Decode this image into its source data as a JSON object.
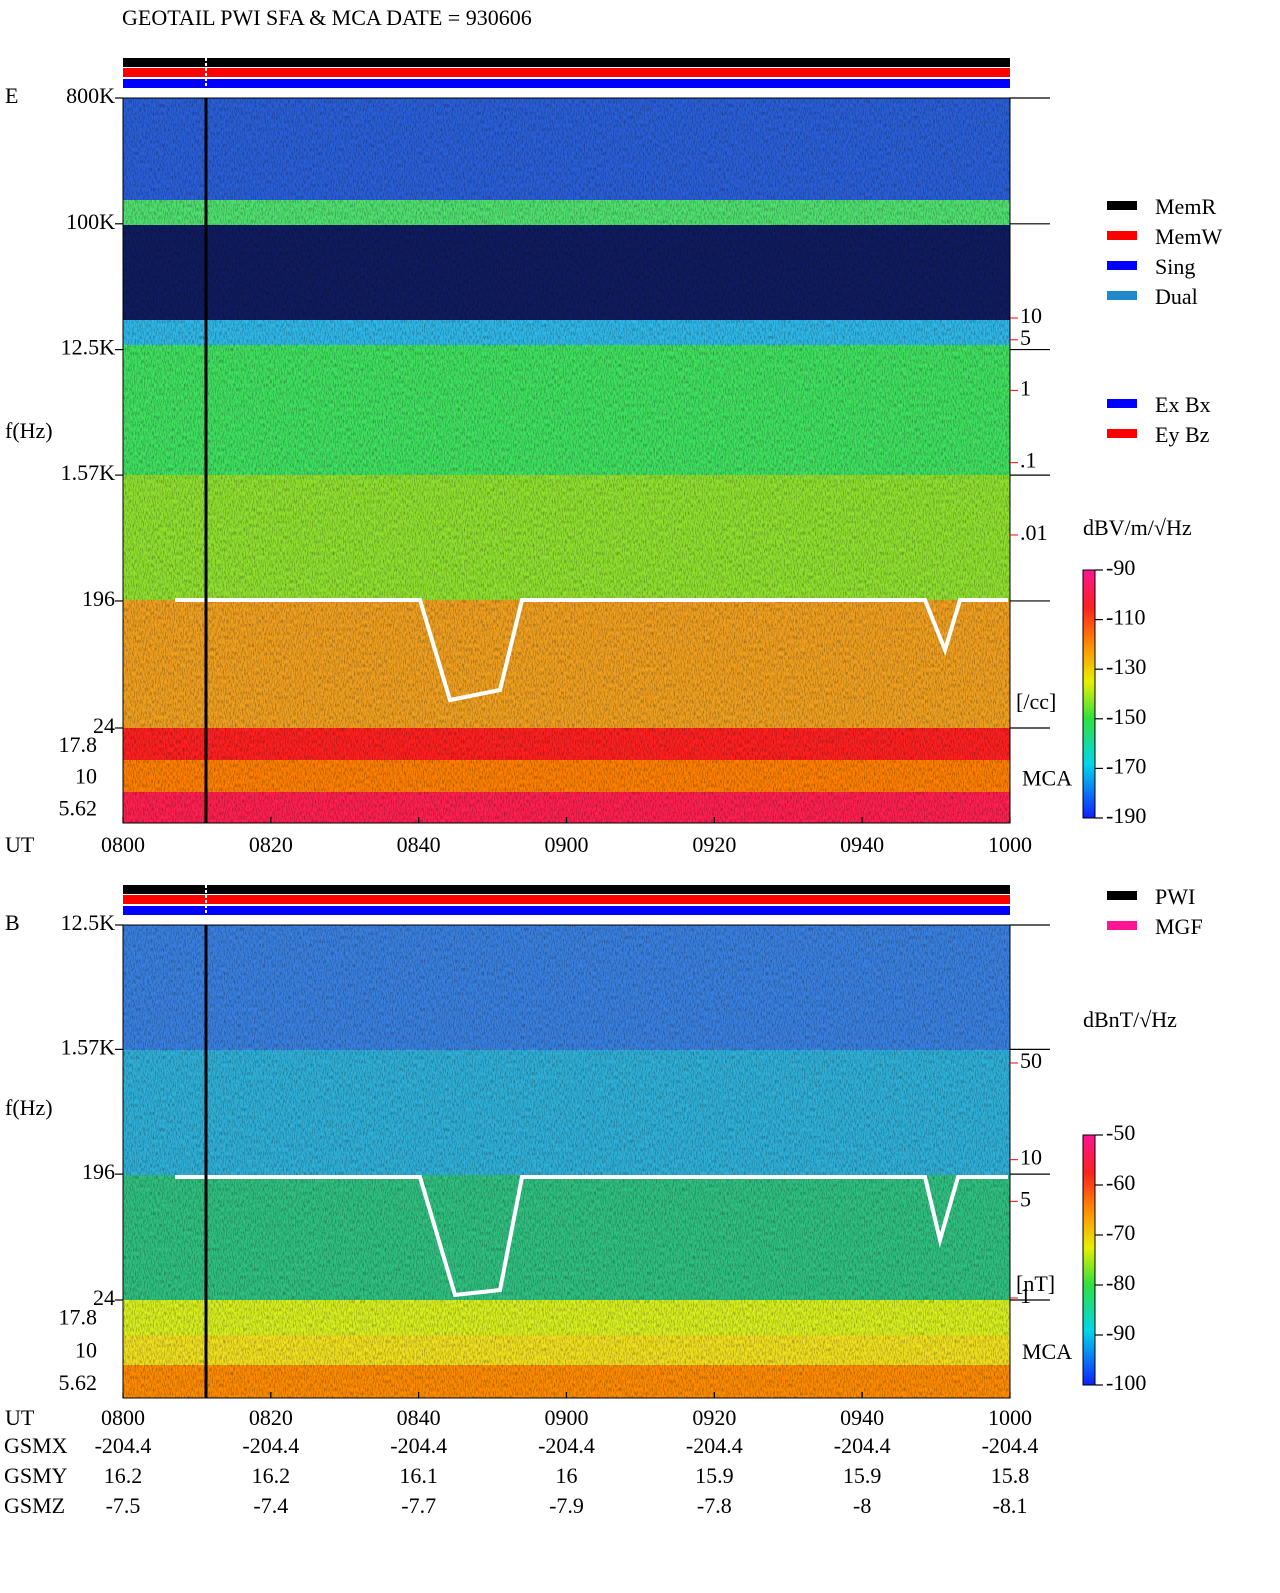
{
  "title": "GEOTAIL  PWI SFA & MCA   DATE = 930606",
  "chart_data": [
    {
      "type": "spectrogram",
      "label": "E",
      "y_label": "f(Hz)",
      "x_label": "UT",
      "x_categories": [
        "0800",
        "0820",
        "0840",
        "0900",
        "0920",
        "0940",
        "1000"
      ],
      "log_y": true,
      "ylim": [
        24,
        800000
      ],
      "yticks": [
        {
          "value": 800000,
          "label": "800K"
        },
        {
          "value": 100000,
          "label": "100K"
        },
        {
          "value": 12500,
          "label": "12.5K"
        },
        {
          "value": 1570,
          "label": "1.57K"
        },
        196,
        24
      ],
      "mca_label": "MCA",
      "mca_ticks": [
        17.8,
        10,
        5.62
      ],
      "side_lim": [
        0.01,
        10
      ],
      "side_ticks": [
        10,
        5,
        1,
        {
          "value": 0.1,
          "label": ".1"
        },
        {
          "value": 0.01,
          "label": ".01"
        }
      ],
      "side_unit": "[/cc]",
      "colorbar_title": "dBV/m/√Hz",
      "clim": [
        -190,
        -90
      ],
      "cticks": [
        -90,
        -110,
        -130,
        -150,
        -170,
        -190
      ],
      "legend": [
        {
          "name": "MemR",
          "color": "#000000"
        },
        {
          "name": "MemW",
          "color": "#ff0000"
        },
        {
          "name": "Sing",
          "color": "#0000ff"
        },
        {
          "name": "Dual",
          "color": "#2288cc"
        }
      ],
      "legend2": [
        {
          "name": "Ex Bx",
          "color": "#0000ff"
        },
        {
          "name": "Ey Bz",
          "color": "#ff0000"
        }
      ]
    },
    {
      "type": "spectrogram",
      "label": "B",
      "y_label": "f(Hz)",
      "x_label": "UT",
      "x_categories": [
        "0800",
        "0820",
        "0840",
        "0900",
        "0920",
        "0940",
        "1000"
      ],
      "log_y": true,
      "ylim": [
        24,
        12500
      ],
      "yticks": [
        {
          "value": 12500,
          "label": "12.5K"
        },
        {
          "value": 1570,
          "label": "1.57K"
        },
        196,
        24
      ],
      "mca_label": "MCA",
      "mca_ticks": [
        17.8,
        10,
        5.62
      ],
      "side_lim": [
        1,
        50
      ],
      "side_ticks": [
        50,
        10,
        5,
        1
      ],
      "side_unit": "[nT]",
      "colorbar_title": "dBnT/√Hz",
      "clim": [
        -100,
        -50
      ],
      "cticks": [
        -50,
        -60,
        -70,
        -80,
        -90,
        -100
      ],
      "legend": [
        {
          "name": "PWI",
          "color": "#000000"
        },
        {
          "name": "MGF",
          "color": "#ff1493"
        }
      ],
      "legend2": []
    }
  ],
  "orbit": [
    {
      "label": "GSMX",
      "values": [
        -204.4,
        -204.4,
        -204.4,
        -204.4,
        -204.4,
        -204.4,
        -204.4
      ]
    },
    {
      "label": "GSMY",
      "values": [
        16.2,
        16.2,
        16.1,
        16.0,
        15.9,
        15.9,
        15.8
      ]
    },
    {
      "label": "GSMZ",
      "values": [
        -7.5,
        -7.4,
        -7.7,
        -7.9,
        -7.8,
        -8.0,
        -8.1
      ]
    }
  ]
}
